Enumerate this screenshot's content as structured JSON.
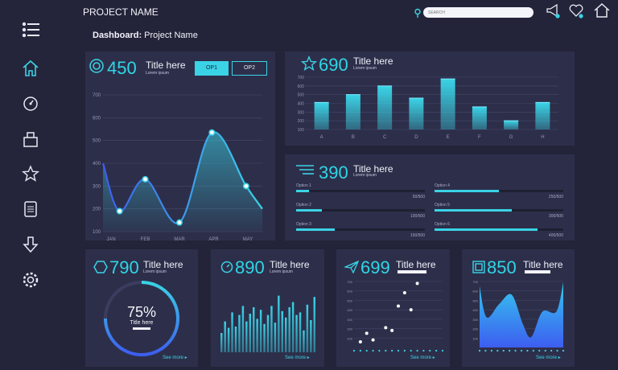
{
  "header": {
    "project_name": "PROJECT NAME",
    "breadcrumb_bold": "Dashboard:",
    "breadcrumb_rest": " Project Name",
    "search_placeholder": "SEARCH"
  },
  "sidebar": {
    "items": [
      "menu-icon",
      "home-icon",
      "dashboard-gauge-icon",
      "box-icon",
      "star-icon",
      "document-icon",
      "download-icon",
      "settings-icon"
    ]
  },
  "colors": {
    "accent": "#3ad3e6",
    "card": "#2d2f4a",
    "background": "#232439"
  },
  "card_main": {
    "value": "450",
    "title": "Title here",
    "subtitle": "Lorem ipsum",
    "op1": "OP1",
    "op2": "OP2"
  },
  "card_bars": {
    "value": "690",
    "title": "Title here",
    "subtitle": "Lorem ipsum"
  },
  "card_options": {
    "value": "390",
    "title": "Title here",
    "subtitle": "Lorem ipsum",
    "options": [
      {
        "label": "Option 1",
        "value_text": "50/500",
        "value": 50,
        "max": 500
      },
      {
        "label": "Option 2",
        "value_text": "100/500",
        "value": 100,
        "max": 500
      },
      {
        "label": "Option 3",
        "value_text": "150/500",
        "value": 150,
        "max": 500
      },
      {
        "label": "Option 4",
        "value_text": "250/500",
        "value": 250,
        "max": 500
      },
      {
        "label": "Option 5",
        "value_text": "300/500",
        "value": 300,
        "max": 500
      },
      {
        "label": "Option 6",
        "value_text": "400/500",
        "value": 400,
        "max": 500
      }
    ]
  },
  "card_donut": {
    "value": "790",
    "title": "Title here",
    "subtitle": "Lorem ipsum",
    "percent_text": "75%",
    "inner_title": "Title here",
    "progress": 0.75,
    "see_more": "See more ▸"
  },
  "card_histogram": {
    "value": "890",
    "title": "Title here",
    "subtitle": "Lorem ipsum",
    "see_more": "See more ▸"
  },
  "card_scatter": {
    "value": "699",
    "title": "Title here",
    "see_more": "See more ▸"
  },
  "card_area": {
    "value": "850",
    "title": "Title here",
    "see_more": "See more ▸"
  },
  "chart_data": [
    {
      "type": "line",
      "categories": [
        "JAN",
        "FEB",
        "MAR",
        "APR",
        "MAY"
      ],
      "ylim": [
        100,
        700
      ],
      "yticks": [
        100,
        200,
        300,
        400,
        500,
        600,
        700
      ],
      "x": [
        0.25,
        1.0,
        2.0,
        2.95,
        3.95
      ],
      "values": [
        190,
        330,
        140,
        535,
        300
      ],
      "start": 400,
      "end": 200
    },
    {
      "type": "bar",
      "categories": [
        "A",
        "B",
        "C",
        "D",
        "E",
        "F",
        "G",
        "H"
      ],
      "values": [
        410,
        500,
        600,
        460,
        680,
        360,
        200,
        410
      ],
      "ylim": [
        100,
        700
      ],
      "yticks": [
        100,
        200,
        300,
        400,
        500,
        600,
        700
      ]
    },
    {
      "type": "bar",
      "values": [
        30,
        48,
        38,
        62,
        40,
        58,
        72,
        48,
        60,
        70,
        52,
        66,
        44,
        58,
        72,
        46,
        88,
        64,
        54,
        70,
        78,
        58,
        62,
        34,
        74,
        50,
        86
      ]
    },
    {
      "type": "scatter",
      "yticks": [
        100,
        200,
        300,
        400,
        500,
        600,
        700
      ],
      "ylim": [
        0,
        700
      ],
      "xlim": [
        0,
        14
      ],
      "x": [
        1,
        2,
        3,
        5,
        6,
        7,
        8,
        9,
        10
      ],
      "y": [
        60,
        150,
        80,
        210,
        180,
        440,
        580,
        400,
        680
      ]
    },
    {
      "type": "area",
      "yticks": [
        100,
        200,
        300,
        400,
        500,
        600,
        700
      ],
      "ylim": [
        0,
        700
      ],
      "x": [
        0,
        0.5,
        1.4,
        2.3,
        3.1,
        3.7,
        4.5,
        5.5,
        6.0
      ],
      "values": [
        650,
        320,
        460,
        560,
        250,
        110,
        380,
        380,
        690
      ]
    }
  ]
}
